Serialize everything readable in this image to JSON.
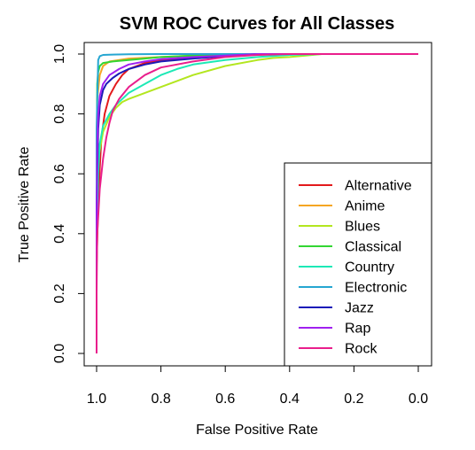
{
  "chart_data": {
    "type": "line",
    "title": "SVM ROC Curves for All Classes",
    "xlabel": "False Positive Rate",
    "ylabel": "True Positive Rate",
    "xlim": [
      1.0,
      0.0
    ],
    "ylim": [
      0.0,
      1.0
    ],
    "x_axis_reversed": true,
    "x_ticks": [
      "1.0",
      "0.8",
      "0.6",
      "0.4",
      "0.2",
      "0.0"
    ],
    "y_ticks": [
      "0.0",
      "0.2",
      "0.4",
      "0.6",
      "0.8",
      "1.0"
    ],
    "grid": false,
    "legend_position": "bottom-right",
    "series": [
      {
        "name": "Alternative",
        "color": "#e31a1c",
        "x": [
          1.0,
          1.0,
          0.995,
          0.99,
          0.985,
          0.975,
          0.96,
          0.94,
          0.92,
          0.9,
          0.85,
          0.8,
          0.7,
          0.6,
          0.5,
          0.4,
          0.3,
          0.2,
          0.0
        ],
        "y": [
          0.0,
          0.3,
          0.5,
          0.62,
          0.72,
          0.8,
          0.86,
          0.9,
          0.93,
          0.95,
          0.97,
          0.98,
          0.99,
          0.995,
          0.998,
          1.0,
          1.0,
          1.0,
          1.0
        ]
      },
      {
        "name": "Anime",
        "color": "#f5a623",
        "x": [
          1.0,
          1.0,
          0.998,
          0.99,
          0.98,
          0.96,
          0.9,
          0.8,
          0.7,
          0.5,
          0.3,
          0.0
        ],
        "y": [
          0.0,
          0.6,
          0.85,
          0.93,
          0.96,
          0.975,
          0.985,
          0.99,
          0.995,
          1.0,
          1.0,
          1.0
        ]
      },
      {
        "name": "Blues",
        "color": "#b3e61f",
        "x": [
          1.0,
          1.0,
          0.995,
          0.98,
          0.96,
          0.94,
          0.92,
          0.9,
          0.85,
          0.8,
          0.75,
          0.7,
          0.6,
          0.5,
          0.45,
          0.4,
          0.35,
          0.3,
          0.2,
          0.0
        ],
        "y": [
          0.0,
          0.5,
          0.65,
          0.74,
          0.79,
          0.82,
          0.84,
          0.85,
          0.87,
          0.89,
          0.91,
          0.93,
          0.96,
          0.98,
          0.987,
          0.99,
          0.995,
          1.0,
          1.0,
          1.0
        ]
      },
      {
        "name": "Classical",
        "color": "#33d633",
        "x": [
          1.0,
          1.0,
          0.998,
          0.995,
          0.99,
          0.98,
          0.95,
          0.9,
          0.85,
          0.8,
          0.7,
          0.5,
          0.0
        ],
        "y": [
          0.0,
          0.5,
          0.9,
          0.94,
          0.96,
          0.97,
          0.975,
          0.98,
          0.985,
          0.99,
          0.995,
          1.0,
          1.0
        ]
      },
      {
        "name": "Country",
        "color": "#1de9b6",
        "x": [
          1.0,
          1.0,
          0.995,
          0.99,
          0.98,
          0.96,
          0.94,
          0.92,
          0.9,
          0.85,
          0.8,
          0.75,
          0.7,
          0.6,
          0.5,
          0.4,
          0.3,
          0.0
        ],
        "y": [
          0.0,
          0.4,
          0.6,
          0.7,
          0.76,
          0.8,
          0.83,
          0.85,
          0.87,
          0.9,
          0.93,
          0.95,
          0.965,
          0.98,
          0.99,
          0.997,
          1.0,
          1.0
        ]
      },
      {
        "name": "Electronic",
        "color": "#26a6d1",
        "x": [
          1.0,
          1.0,
          0.995,
          0.99,
          0.98,
          0.96,
          0.9,
          0.8,
          0.5,
          0.0
        ],
        "y": [
          0.0,
          0.75,
          0.98,
          0.993,
          0.997,
          0.998,
          0.999,
          1.0,
          1.0,
          1.0
        ]
      },
      {
        "name": "Jazz",
        "color": "#1a1ab8",
        "x": [
          1.0,
          1.0,
          0.995,
          0.99,
          0.98,
          0.97,
          0.96,
          0.95,
          0.93,
          0.9,
          0.85,
          0.8,
          0.7,
          0.6,
          0.5,
          0.3,
          0.0
        ],
        "y": [
          0.0,
          0.5,
          0.75,
          0.83,
          0.88,
          0.9,
          0.91,
          0.92,
          0.935,
          0.95,
          0.965,
          0.975,
          0.985,
          0.993,
          1.0,
          1.0,
          1.0
        ]
      },
      {
        "name": "Rap",
        "color": "#a020f0",
        "x": [
          1.0,
          1.0,
          0.998,
          0.995,
          0.99,
          0.98,
          0.96,
          0.93,
          0.9,
          0.85,
          0.8,
          0.7,
          0.6,
          0.5,
          0.3,
          0.0
        ],
        "y": [
          0.0,
          0.4,
          0.7,
          0.8,
          0.86,
          0.9,
          0.93,
          0.95,
          0.965,
          0.975,
          0.983,
          0.99,
          0.995,
          1.0,
          1.0,
          1.0
        ]
      },
      {
        "name": "Rock",
        "color": "#e91e8c",
        "x": [
          1.0,
          1.0,
          0.998,
          0.99,
          0.98,
          0.97,
          0.96,
          0.95,
          0.93,
          0.9,
          0.85,
          0.8,
          0.7,
          0.6,
          0.5,
          0.4,
          0.3,
          0.0
        ],
        "y": [
          0.0,
          0.2,
          0.4,
          0.55,
          0.65,
          0.72,
          0.77,
          0.81,
          0.85,
          0.89,
          0.93,
          0.955,
          0.975,
          0.99,
          0.997,
          1.0,
          1.0,
          1.0
        ]
      }
    ]
  }
}
